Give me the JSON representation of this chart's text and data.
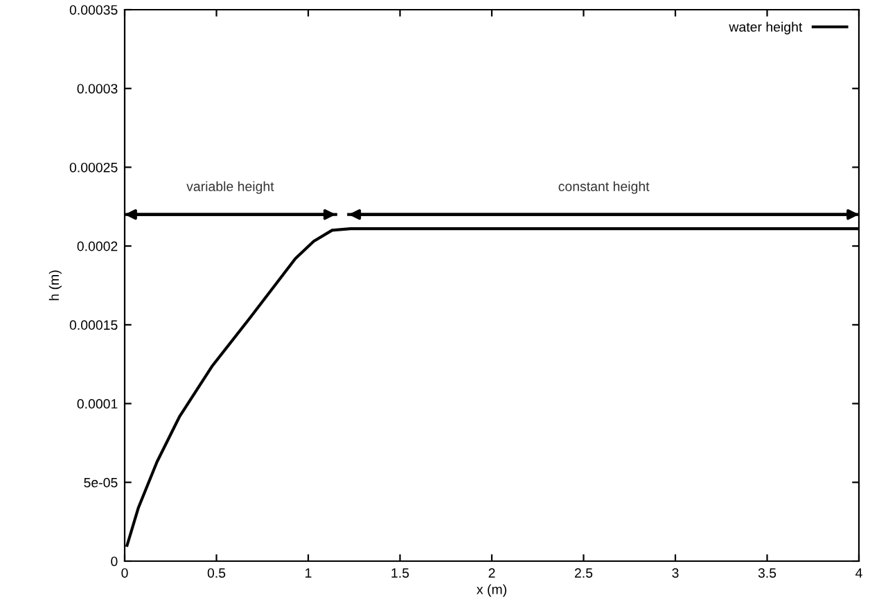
{
  "chart_data": {
    "type": "line",
    "xlabel": "x (m)",
    "ylabel": "h (m)",
    "series": [
      {
        "name": "water height",
        "color": "#000000",
        "x": [
          0.013,
          0.075,
          0.176,
          0.3,
          0.478,
          0.68,
          0.93,
          1.03,
          1.13,
          1.23,
          2.0,
          3.0,
          4.0
        ],
        "values": [
          1e-05,
          3.4e-05,
          6.3e-05,
          9.2e-05,
          0.000124,
          0.000154,
          0.000192,
          0.000203,
          0.00021,
          0.000211,
          0.000211,
          0.000211,
          0.000211
        ]
      },
      {
        "color": "#000000",
        "x": [
          0,
          1.15
        ],
        "values": [
          0.00022,
          0.00022
        ]
      },
      {
        "color": "#000000",
        "x": [
          1.22,
          4
        ],
        "values": [
          0.00022,
          0.00022
        ]
      }
    ],
    "annotations": [
      "variable height",
      "constant height"
    ],
    "xlim": [
      0,
      4
    ],
    "xticks": [
      0,
      0.5,
      1,
      1.5,
      2,
      2.5,
      3,
      3.5,
      4
    ],
    "ylim": [
      0,
      0.00035
    ],
    "yticks": [
      0,
      {
        "value": 5e-05,
        "label": "5e-05"
      },
      0.0001,
      0.00015,
      0.0002,
      0.00025,
      0.0003,
      0.00035
    ],
    "legend": "top right",
    "grid": false,
    "marker": "none",
    "line_style": "solid"
  }
}
